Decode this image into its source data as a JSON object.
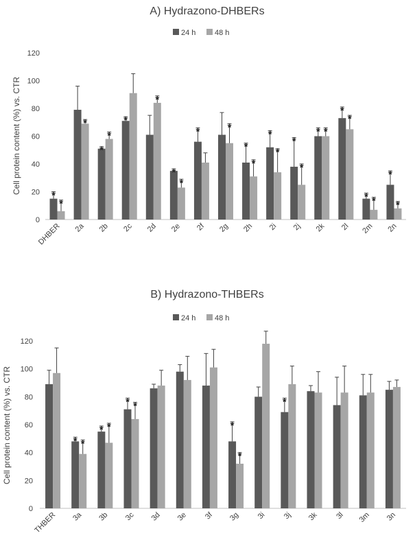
{
  "colors": {
    "s24": "#595959",
    "s48": "#a6a6a6"
  },
  "chart_data": [
    {
      "type": "bar",
      "title": "A) Hydrazono-DHBERs",
      "ylabel": "Cell protein content (%) vs. CTR",
      "xlabel": "",
      "ylim": [
        0,
        120
      ],
      "yticks": [
        0,
        20,
        40,
        60,
        80,
        100,
        120
      ],
      "legend": "top-center",
      "categories": [
        "DHBER",
        "2a",
        "2b",
        "2c",
        "2d",
        "2e",
        "2f",
        "2g",
        "2h",
        "2i",
        "2j",
        "2k",
        "2l",
        "2m",
        "2n"
      ],
      "series": [
        {
          "name": "24 h",
          "values": [
            15,
            79,
            51,
            71,
            61,
            35,
            56,
            61,
            41,
            52,
            38,
            60,
            73,
            15,
            25
          ],
          "errors": [
            5,
            17,
            1.5,
            3,
            14,
            1.5,
            10,
            16,
            14,
            12,
            21,
            6,
            8,
            4,
            10
          ],
          "significant": [
            true,
            false,
            true,
            true,
            false,
            true,
            true,
            false,
            true,
            true,
            true,
            true,
            true,
            true,
            true
          ]
        },
        {
          "name": "48 h",
          "values": [
            6,
            69,
            58,
            91,
            84,
            23,
            41,
            55,
            31,
            34,
            25,
            60,
            65,
            7,
            8
          ],
          "errors": [
            8,
            3,
            5,
            14,
            5,
            6,
            7,
            14,
            12,
            17,
            15,
            6,
            10,
            9,
            5
          ],
          "significant": [
            true,
            true,
            true,
            false,
            true,
            true,
            false,
            true,
            true,
            true,
            true,
            true,
            true,
            true,
            true
          ]
        }
      ]
    },
    {
      "type": "bar",
      "title": "B) Hydrazono-THBERs",
      "ylabel": "Cell protein content (%) vs. CTR",
      "xlabel": "",
      "ylim": [
        0,
        120
      ],
      "yticks": [
        0,
        20,
        40,
        60,
        80,
        100,
        120
      ],
      "legend": "top-center",
      "categories": [
        "THBER",
        "3a",
        "3b",
        "3c",
        "3d",
        "3e",
        "3f",
        "3g",
        "3i",
        "3j",
        "3k",
        "3l",
        "3m",
        "3n"
      ],
      "series": [
        {
          "name": "24 h",
          "values": [
            89,
            48,
            55,
            71,
            86,
            98,
            88,
            48,
            80,
            69,
            84,
            74,
            81,
            85
          ],
          "errors": [
            10,
            3,
            4,
            8,
            3,
            5,
            23,
            14,
            7,
            10,
            4,
            20,
            15,
            6
          ],
          "significant": [
            false,
            true,
            true,
            true,
            false,
            false,
            false,
            true,
            false,
            true,
            false,
            false,
            false,
            false
          ]
        },
        {
          "name": "48 h",
          "values": [
            97,
            39,
            47,
            64,
            88,
            92,
            101,
            32,
            118,
            89,
            83,
            83,
            83,
            87
          ],
          "errors": [
            18,
            10,
            14,
            12,
            11,
            17,
            13,
            8,
            9,
            13,
            15,
            19,
            13,
            5
          ],
          "significant": [
            false,
            true,
            true,
            true,
            false,
            false,
            false,
            true,
            false,
            false,
            false,
            false,
            false,
            false
          ]
        }
      ]
    }
  ]
}
